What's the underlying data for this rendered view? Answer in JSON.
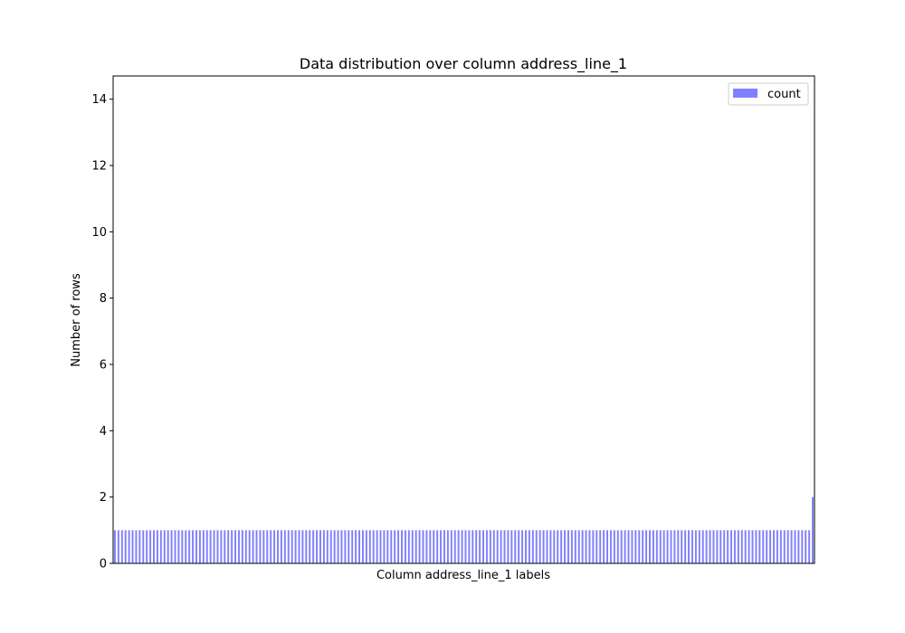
{
  "chart_data": {
    "type": "bar",
    "title": "Data distribution over column address_line_1",
    "xlabel": "Column address_line_1 labels",
    "ylabel": "Number of rows",
    "ylim": [
      0,
      14.7
    ],
    "yticks": [
      0,
      2,
      4,
      6,
      8,
      10,
      12,
      14
    ],
    "grid": false,
    "legend": "top-right",
    "bar_color": "#8080ff",
    "series": [
      {
        "name": "count",
        "values": [
          1,
          1,
          1,
          1,
          1,
          1,
          1,
          1,
          1,
          1,
          1,
          1,
          1,
          1,
          1,
          1,
          1,
          1,
          1,
          1,
          1,
          1,
          1,
          1,
          1,
          1,
          1,
          1,
          1,
          1,
          1,
          1,
          1,
          1,
          1,
          1,
          1,
          1,
          1,
          1,
          1,
          1,
          1,
          1,
          1,
          1,
          1,
          1,
          1,
          1,
          1,
          1,
          1,
          1,
          1,
          1,
          1,
          1,
          1,
          1,
          1,
          1,
          1,
          1,
          1,
          1,
          1,
          1,
          1,
          1,
          1,
          1,
          1,
          1,
          1,
          1,
          1,
          1,
          1,
          1,
          1,
          1,
          1,
          1,
          1,
          1,
          1,
          1,
          1,
          1,
          1,
          1,
          1,
          1,
          1,
          1,
          1,
          1,
          1,
          1,
          1,
          1,
          1,
          1,
          1,
          1,
          1,
          1,
          1,
          1,
          1,
          1,
          1,
          1,
          1,
          1,
          1,
          1,
          1,
          1,
          1,
          1,
          1,
          1,
          1,
          1,
          1,
          1,
          1,
          1,
          1,
          1,
          1,
          1,
          1,
          1,
          1,
          1,
          1,
          1,
          1,
          1,
          1,
          1,
          1,
          1,
          1,
          1,
          1,
          1,
          1,
          1,
          1,
          1,
          1,
          1,
          1,
          1,
          1,
          1,
          1,
          1,
          1,
          1,
          1,
          1,
          1,
          1,
          1,
          1,
          1,
          1,
          1,
          1,
          1,
          1,
          1,
          1,
          1,
          1,
          1,
          1,
          1,
          1,
          1,
          1,
          1,
          1,
          1,
          1,
          1,
          1,
          1,
          1,
          1,
          1,
          1,
          2
        ]
      }
    ]
  }
}
